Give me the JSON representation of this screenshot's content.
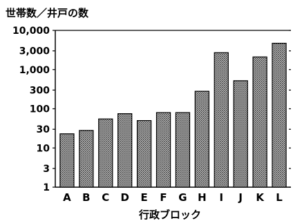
{
  "chart_data": {
    "type": "bar",
    "title": "世帯数／井戸の数",
    "xlabel": "行政ブロック",
    "ylabel": "",
    "yscale": "log",
    "ylim": [
      1,
      10000
    ],
    "yticks": [
      1,
      3,
      10,
      30,
      100,
      300,
      1000,
      3000,
      10000
    ],
    "ytick_labels": [
      "1",
      "3",
      "10",
      "30",
      "100",
      "300",
      "1,000",
      "3,000",
      "10,000"
    ],
    "categories": [
      "A",
      "B",
      "C",
      "D",
      "E",
      "F",
      "G",
      "H",
      "I",
      "J",
      "K",
      "L"
    ],
    "values": [
      23,
      28,
      55,
      75,
      50,
      80,
      80,
      280,
      2700,
      520,
      2100,
      4700
    ],
    "bar_fill": "#8a8a8a",
    "bar_stroke": "#000000",
    "grid": false,
    "legend": "none"
  }
}
